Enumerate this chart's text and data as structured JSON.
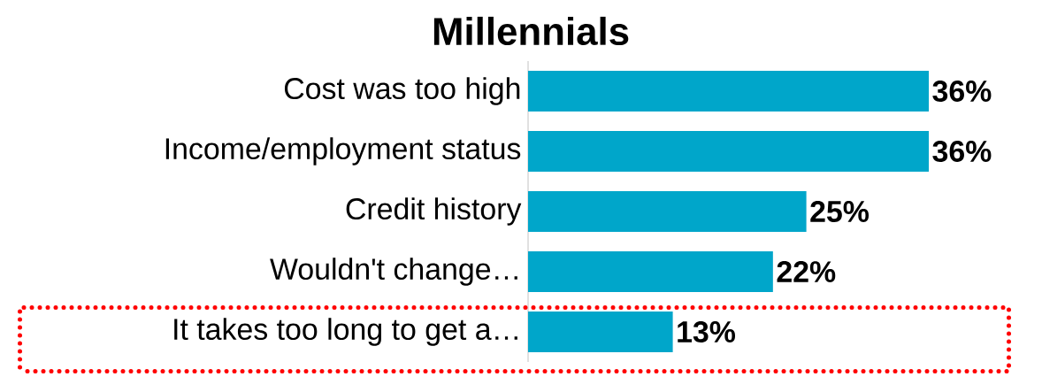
{
  "chart_data": {
    "type": "bar",
    "orientation": "horizontal",
    "title": "Millennials",
    "categories": [
      "Cost was too high",
      "Income/employment status",
      "Credit history",
      "Wouldn't change…",
      "It takes too long to get a…"
    ],
    "values": [
      36,
      36,
      25,
      22,
      13
    ],
    "value_labels": [
      "36%",
      "36%",
      "25%",
      "22%",
      "13%"
    ],
    "color": "#00a6ca"
  }
}
